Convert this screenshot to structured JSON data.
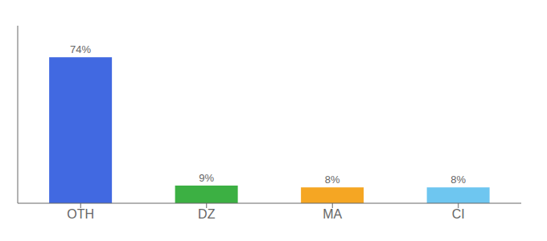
{
  "chart_data": {
    "type": "bar",
    "categories": [
      "OTH",
      "DZ",
      "MA",
      "CI"
    ],
    "values": [
      74,
      9,
      8,
      8
    ],
    "value_labels": [
      "74%",
      "9%",
      "8%",
      "8%"
    ],
    "colors": [
      "#4169e1",
      "#3cb043",
      "#f5a623",
      "#6ec6f0"
    ],
    "ylim": [
      0,
      90
    ],
    "data_labels": true,
    "tick_labels": "x"
  }
}
